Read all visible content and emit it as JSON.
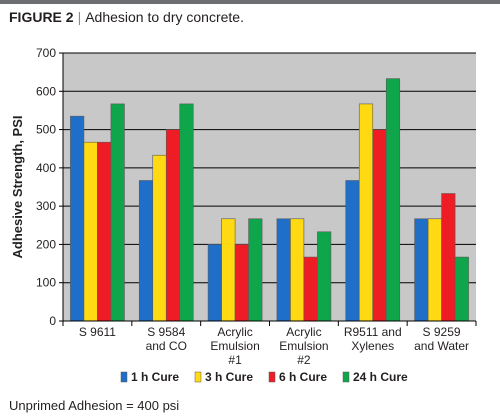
{
  "figure": {
    "label": "FIGURE 2",
    "separator": "|",
    "caption": "Adhesion to dry concrete."
  },
  "footnote": "Unprimed Adhesion = 400 psi",
  "colors": {
    "plot_background": "#c8c8c8",
    "gridline": "#000000",
    "bar_outline": "#5a5a5a"
  },
  "chart_data": {
    "type": "bar",
    "ylabel": "Adhesive Strength, PSI",
    "xlabel": "",
    "ylim": [
      0,
      700
    ],
    "yticks": [
      0,
      100,
      200,
      300,
      400,
      500,
      600,
      700
    ],
    "grid": true,
    "legend_position": "bottom",
    "categories": [
      [
        "S 9611"
      ],
      [
        "S 9584",
        "and CO"
      ],
      [
        "Acrylic",
        "Emulsion",
        "#1"
      ],
      [
        "Acrylic",
        "Emulsion",
        "#2"
      ],
      [
        "R9511 and",
        "Xylenes"
      ],
      [
        "S 9259",
        "and Water"
      ]
    ],
    "series": [
      {
        "name": "1 h Cure",
        "color": "#1f6ec7",
        "values": [
          535,
          367,
          200,
          267,
          367,
          267
        ]
      },
      {
        "name": "3 h Cure",
        "color": "#ffd911",
        "values": [
          467,
          433,
          267,
          267,
          567,
          267
        ]
      },
      {
        "name": "6 h Cure",
        "color": "#ee1c24",
        "values": [
          467,
          500,
          200,
          167,
          500,
          333
        ]
      },
      {
        "name": "24 h Cure",
        "color": "#0fa54a",
        "values": [
          567,
          567,
          267,
          233,
          633,
          167
        ]
      }
    ]
  }
}
